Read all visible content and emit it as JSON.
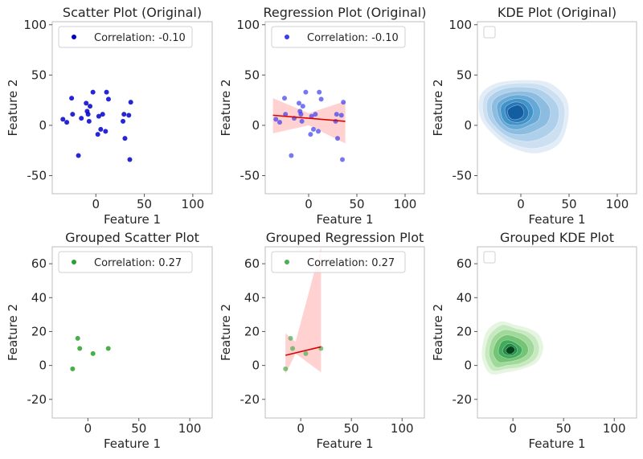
{
  "chart_data": [
    {
      "type": "scatter",
      "title": "Scatter Plot (Original)",
      "xlabel": "Feature 1",
      "ylabel": "Feature 2",
      "xlim": [
        -45,
        120
      ],
      "ylim": [
        -68,
        103
      ],
      "xticks": [
        0,
        50,
        100
      ],
      "yticks": [
        -50,
        0,
        50,
        100
      ],
      "legend": {
        "label": "Correlation: -0.10",
        "location": "upper-left"
      },
      "color": "#0000cc",
      "points": [
        {
          "x": -34,
          "y": 6
        },
        {
          "x": -30,
          "y": 3
        },
        {
          "x": -25,
          "y": 27
        },
        {
          "x": -24,
          "y": 11
        },
        {
          "x": -18,
          "y": -30
        },
        {
          "x": -15,
          "y": 7
        },
        {
          "x": -10,
          "y": 22
        },
        {
          "x": -9,
          "y": 14
        },
        {
          "x": -8,
          "y": 11
        },
        {
          "x": -7,
          "y": 4
        },
        {
          "x": -6,
          "y": 19
        },
        {
          "x": -3,
          "y": 33
        },
        {
          "x": 2,
          "y": -9
        },
        {
          "x": 3,
          "y": 9
        },
        {
          "x": 5,
          "y": -4
        },
        {
          "x": 7,
          "y": 11
        },
        {
          "x": 10,
          "y": -6
        },
        {
          "x": 11,
          "y": 33
        },
        {
          "x": 13,
          "y": 26
        },
        {
          "x": 28,
          "y": 4
        },
        {
          "x": 29,
          "y": 11
        },
        {
          "x": 30,
          "y": -13
        },
        {
          "x": 34,
          "y": 10
        },
        {
          "x": 35,
          "y": -34
        },
        {
          "x": 36,
          "y": 23
        }
      ]
    },
    {
      "type": "scatter",
      "title": "Regression Plot (Original)",
      "xlabel": "Feature 1",
      "ylabel": "Feature 2",
      "xlim": [
        -45,
        120
      ],
      "ylim": [
        -68,
        103
      ],
      "xticks": [
        0,
        50,
        100
      ],
      "yticks": [
        -50,
        0,
        50,
        100
      ],
      "legend": {
        "label": "Correlation: -0.10",
        "location": "upper-left"
      },
      "color": "#3d3df0",
      "points": [
        {
          "x": -34,
          "y": 6
        },
        {
          "x": -30,
          "y": 3
        },
        {
          "x": -25,
          "y": 27
        },
        {
          "x": -24,
          "y": 11
        },
        {
          "x": -18,
          "y": -30
        },
        {
          "x": -15,
          "y": 7
        },
        {
          "x": -10,
          "y": 22
        },
        {
          "x": -9,
          "y": 14
        },
        {
          "x": -8,
          "y": 11
        },
        {
          "x": -7,
          "y": 4
        },
        {
          "x": -6,
          "y": 19
        },
        {
          "x": -3,
          "y": 33
        },
        {
          "x": 2,
          "y": -9
        },
        {
          "x": 3,
          "y": 9
        },
        {
          "x": 5,
          "y": -4
        },
        {
          "x": 7,
          "y": 11
        },
        {
          "x": 10,
          "y": -6
        },
        {
          "x": 11,
          "y": 33
        },
        {
          "x": 13,
          "y": 26
        },
        {
          "x": 28,
          "y": 4
        },
        {
          "x": 29,
          "y": 11
        },
        {
          "x": 30,
          "y": -13
        },
        {
          "x": 34,
          "y": 10
        },
        {
          "x": 35,
          "y": -34
        },
        {
          "x": 36,
          "y": 23
        }
      ],
      "regression": {
        "color": "#dd0000",
        "line": [
          {
            "x": -37,
            "y": 10
          },
          {
            "x": 38,
            "y": 4
          }
        ],
        "band": {
          "x": [
            -37,
            0,
            38
          ],
          "lower": [
            -8,
            0,
            -18
          ],
          "upper": [
            27,
            12,
            24
          ]
        },
        "band_color": "#ffb3b3"
      }
    },
    {
      "type": "kde",
      "title": "KDE Plot (Original)",
      "xlabel": "Feature 1",
      "ylabel": "Feature 2",
      "xlim": [
        -45,
        120
      ],
      "ylim": [
        -68,
        103
      ],
      "xticks": [
        0,
        50,
        100
      ],
      "yticks": [
        -50,
        0,
        50,
        100
      ],
      "legend": {
        "label": "",
        "location": "upper-left"
      },
      "center": {
        "x": -5,
        "y": 12
      },
      "levels": [
        {
          "color": "#e3edf8",
          "points": [
            [
              -42,
              30
            ],
            [
              -25,
              42
            ],
            [
              5,
              45
            ],
            [
              30,
              42
            ],
            [
              48,
              25
            ],
            [
              48,
              0
            ],
            [
              38,
              -20
            ],
            [
              15,
              -28
            ],
            [
              -10,
              -22
            ],
            [
              -28,
              -10
            ],
            [
              -42,
              8
            ]
          ]
        },
        {
          "color": "#cde0f1",
          "points": [
            [
              -38,
              28
            ],
            [
              -22,
              39
            ],
            [
              5,
              42
            ],
            [
              27,
              38
            ],
            [
              44,
              22
            ],
            [
              44,
              0
            ],
            [
              35,
              -16
            ],
            [
              13,
              -23
            ],
            [
              -10,
              -18
            ],
            [
              -26,
              -7
            ],
            [
              -38,
              8
            ]
          ]
        },
        {
          "color": "#afd0ea",
          "points": [
            [
              -34,
              26
            ],
            [
              -19,
              36
            ],
            [
              4,
              38
            ],
            [
              23,
              34
            ],
            [
              38,
              20
            ],
            [
              38,
              2
            ],
            [
              27,
              -10
            ],
            [
              9,
              -16
            ],
            [
              -10,
              -13
            ],
            [
              -24,
              -4
            ],
            [
              -34,
              9
            ]
          ]
        },
        {
          "color": "#8cbde1",
          "points": [
            [
              -29,
              24
            ],
            [
              -16,
              32
            ],
            [
              3,
              34
            ],
            [
              18,
              30
            ],
            [
              30,
              17
            ],
            [
              28,
              3
            ],
            [
              18,
              -4
            ],
            [
              4,
              -9
            ],
            [
              -11,
              -8
            ],
            [
              -22,
              -1
            ],
            [
              -29,
              10
            ]
          ]
        },
        {
          "color": "#66a9d7",
          "points": [
            [
              -24,
              22
            ],
            [
              -12,
              29
            ],
            [
              2,
              30
            ],
            [
              13,
              26
            ],
            [
              20,
              16
            ],
            [
              18,
              5
            ],
            [
              9,
              0
            ],
            [
              -2,
              -4
            ],
            [
              -12,
              -3
            ],
            [
              -20,
              3
            ],
            [
              -24,
              12
            ]
          ]
        },
        {
          "color": "#4293c9",
          "points": [
            [
              -20,
              20
            ],
            [
              -9,
              26
            ],
            [
              2,
              26
            ],
            [
              9,
              22
            ],
            [
              13,
              14
            ],
            [
              10,
              6
            ],
            [
              2,
              1
            ],
            [
              -7,
              0
            ],
            [
              -15,
              2
            ],
            [
              -20,
              9
            ]
          ]
        },
        {
          "color": "#2878b8",
          "points": [
            [
              -16,
              18
            ],
            [
              -7,
              23
            ],
            [
              1,
              22
            ],
            [
              6,
              18
            ],
            [
              8,
              12
            ],
            [
              5,
              6
            ],
            [
              -2,
              3
            ],
            [
              -10,
              4
            ],
            [
              -15,
              9
            ]
          ]
        },
        {
          "color": "#135ea0",
          "points": [
            [
              -13,
              16
            ],
            [
              -5,
              20
            ],
            [
              0,
              19
            ],
            [
              3,
              14
            ],
            [
              2,
              9
            ],
            [
              -3,
              6
            ],
            [
              -9,
              6
            ],
            [
              -13,
              10
            ]
          ]
        }
      ]
    },
    {
      "type": "scatter",
      "title": "Grouped Scatter Plot",
      "xlabel": "Feature 1",
      "ylabel": "Feature 2",
      "xlim": [
        -35,
        122
      ],
      "ylim": [
        -31,
        70
      ],
      "xticks": [
        0,
        50,
        100
      ],
      "yticks": [
        -20,
        0,
        20,
        40,
        60
      ],
      "legend": {
        "label": "Correlation: 0.27",
        "location": "upper-left"
      },
      "color": "#2ca02c",
      "points": [
        {
          "x": -15,
          "y": -2
        },
        {
          "x": -10,
          "y": 16
        },
        {
          "x": -8,
          "y": 10
        },
        {
          "x": 5,
          "y": 7
        },
        {
          "x": 20,
          "y": 10
        }
      ]
    },
    {
      "type": "scatter",
      "title": "Grouped Regression Plot",
      "xlabel": "Feature 1",
      "ylabel": "Feature 2",
      "xlim": [
        -35,
        122
      ],
      "ylim": [
        -31,
        70
      ],
      "xticks": [
        0,
        50,
        100
      ],
      "yticks": [
        -20,
        0,
        20,
        40,
        60
      ],
      "legend": {
        "label": "Correlation: 0.27",
        "location": "upper-left"
      },
      "color": "#4caf50",
      "points": [
        {
          "x": -15,
          "y": -2
        },
        {
          "x": -10,
          "y": 16
        },
        {
          "x": -8,
          "y": 10
        },
        {
          "x": 5,
          "y": 7
        },
        {
          "x": 20,
          "y": 10
        }
      ],
      "regression": {
        "color": "#dd0000",
        "line": [
          {
            "x": -15,
            "y": 6
          },
          {
            "x": 20,
            "y": 11
          }
        ],
        "band": {
          "x": [
            -15,
            -5,
            20
          ],
          "lower": [
            -5,
            7,
            -4
          ],
          "upper": [
            19,
            14,
            70
          ]
        },
        "band_color": "#ffb3b3"
      }
    },
    {
      "type": "kde",
      "title": "Grouped KDE Plot",
      "xlabel": "Feature 1",
      "ylabel": "Feature 2",
      "xlim": [
        -35,
        122
      ],
      "ylim": [
        -31,
        70
      ],
      "xticks": [
        0,
        50,
        100
      ],
      "yticks": [
        -20,
        0,
        20,
        40,
        60
      ],
      "legend": {
        "label": "",
        "location": "upper-left"
      },
      "center": {
        "x": -1,
        "y": 9
      },
      "levels": [
        {
          "color": "#e5f5e0",
          "points": [
            [
              -30,
              12
            ],
            [
              -25,
              21
            ],
            [
              -12,
              26
            ],
            [
              2,
              24
            ],
            [
              15,
              22
            ],
            [
              26,
              18
            ],
            [
              30,
              10
            ],
            [
              24,
              2
            ],
            [
              10,
              -2
            ],
            [
              -5,
              -4
            ],
            [
              -22,
              -5
            ],
            [
              -30,
              3
            ]
          ]
        },
        {
          "color": "#c7e9c0",
          "points": [
            [
              -27,
              11
            ],
            [
              -22,
              19
            ],
            [
              -10,
              24
            ],
            [
              2,
              22
            ],
            [
              14,
              20
            ],
            [
              23,
              16
            ],
            [
              26,
              9
            ],
            [
              21,
              3
            ],
            [
              8,
              -1
            ],
            [
              -5,
              -2
            ],
            [
              -20,
              -3
            ],
            [
              -27,
              4
            ]
          ]
        },
        {
          "color": "#a1d99b",
          "points": [
            [
              -23,
              11
            ],
            [
              -19,
              17
            ],
            [
              -9,
              21
            ],
            [
              2,
              20
            ],
            [
              12,
              18
            ],
            [
              19,
              14
            ],
            [
              21,
              9
            ],
            [
              16,
              4
            ],
            [
              6,
              1
            ],
            [
              -5,
              0
            ],
            [
              -17,
              -1
            ],
            [
              -23,
              5
            ]
          ]
        },
        {
          "color": "#74c476",
          "points": [
            [
              -19,
              10
            ],
            [
              -15,
              15
            ],
            [
              -7,
              18
            ],
            [
              2,
              17
            ],
            [
              9,
              15
            ],
            [
              14,
              12
            ],
            [
              15,
              8
            ],
            [
              11,
              5
            ],
            [
              3,
              3
            ],
            [
              -6,
              2
            ],
            [
              -14,
              2
            ],
            [
              -19,
              6
            ]
          ]
        },
        {
          "color": "#41ab5d",
          "points": [
            [
              -14,
              10
            ],
            [
              -11,
              14
            ],
            [
              -5,
              15
            ],
            [
              1,
              14
            ],
            [
              6,
              12
            ],
            [
              9,
              10
            ],
            [
              8,
              7
            ],
            [
              3,
              5
            ],
            [
              -4,
              4
            ],
            [
              -10,
              5
            ],
            [
              -14,
              7
            ]
          ]
        },
        {
          "color": "#238b45",
          "points": [
            [
              -10,
              9
            ],
            [
              -7,
              12
            ],
            [
              -3,
              13
            ],
            [
              1,
              12
            ],
            [
              4,
              10
            ],
            [
              4,
              8
            ],
            [
              0,
              6
            ],
            [
              -5,
              6
            ],
            [
              -9,
              7
            ]
          ]
        },
        {
          "color": "#00441b",
          "points": [
            [
              -7,
              9
            ],
            [
              -4,
              11
            ],
            [
              0,
              11
            ],
            [
              2,
              9
            ],
            [
              -1,
              7
            ],
            [
              -5,
              7
            ]
          ]
        }
      ]
    }
  ]
}
